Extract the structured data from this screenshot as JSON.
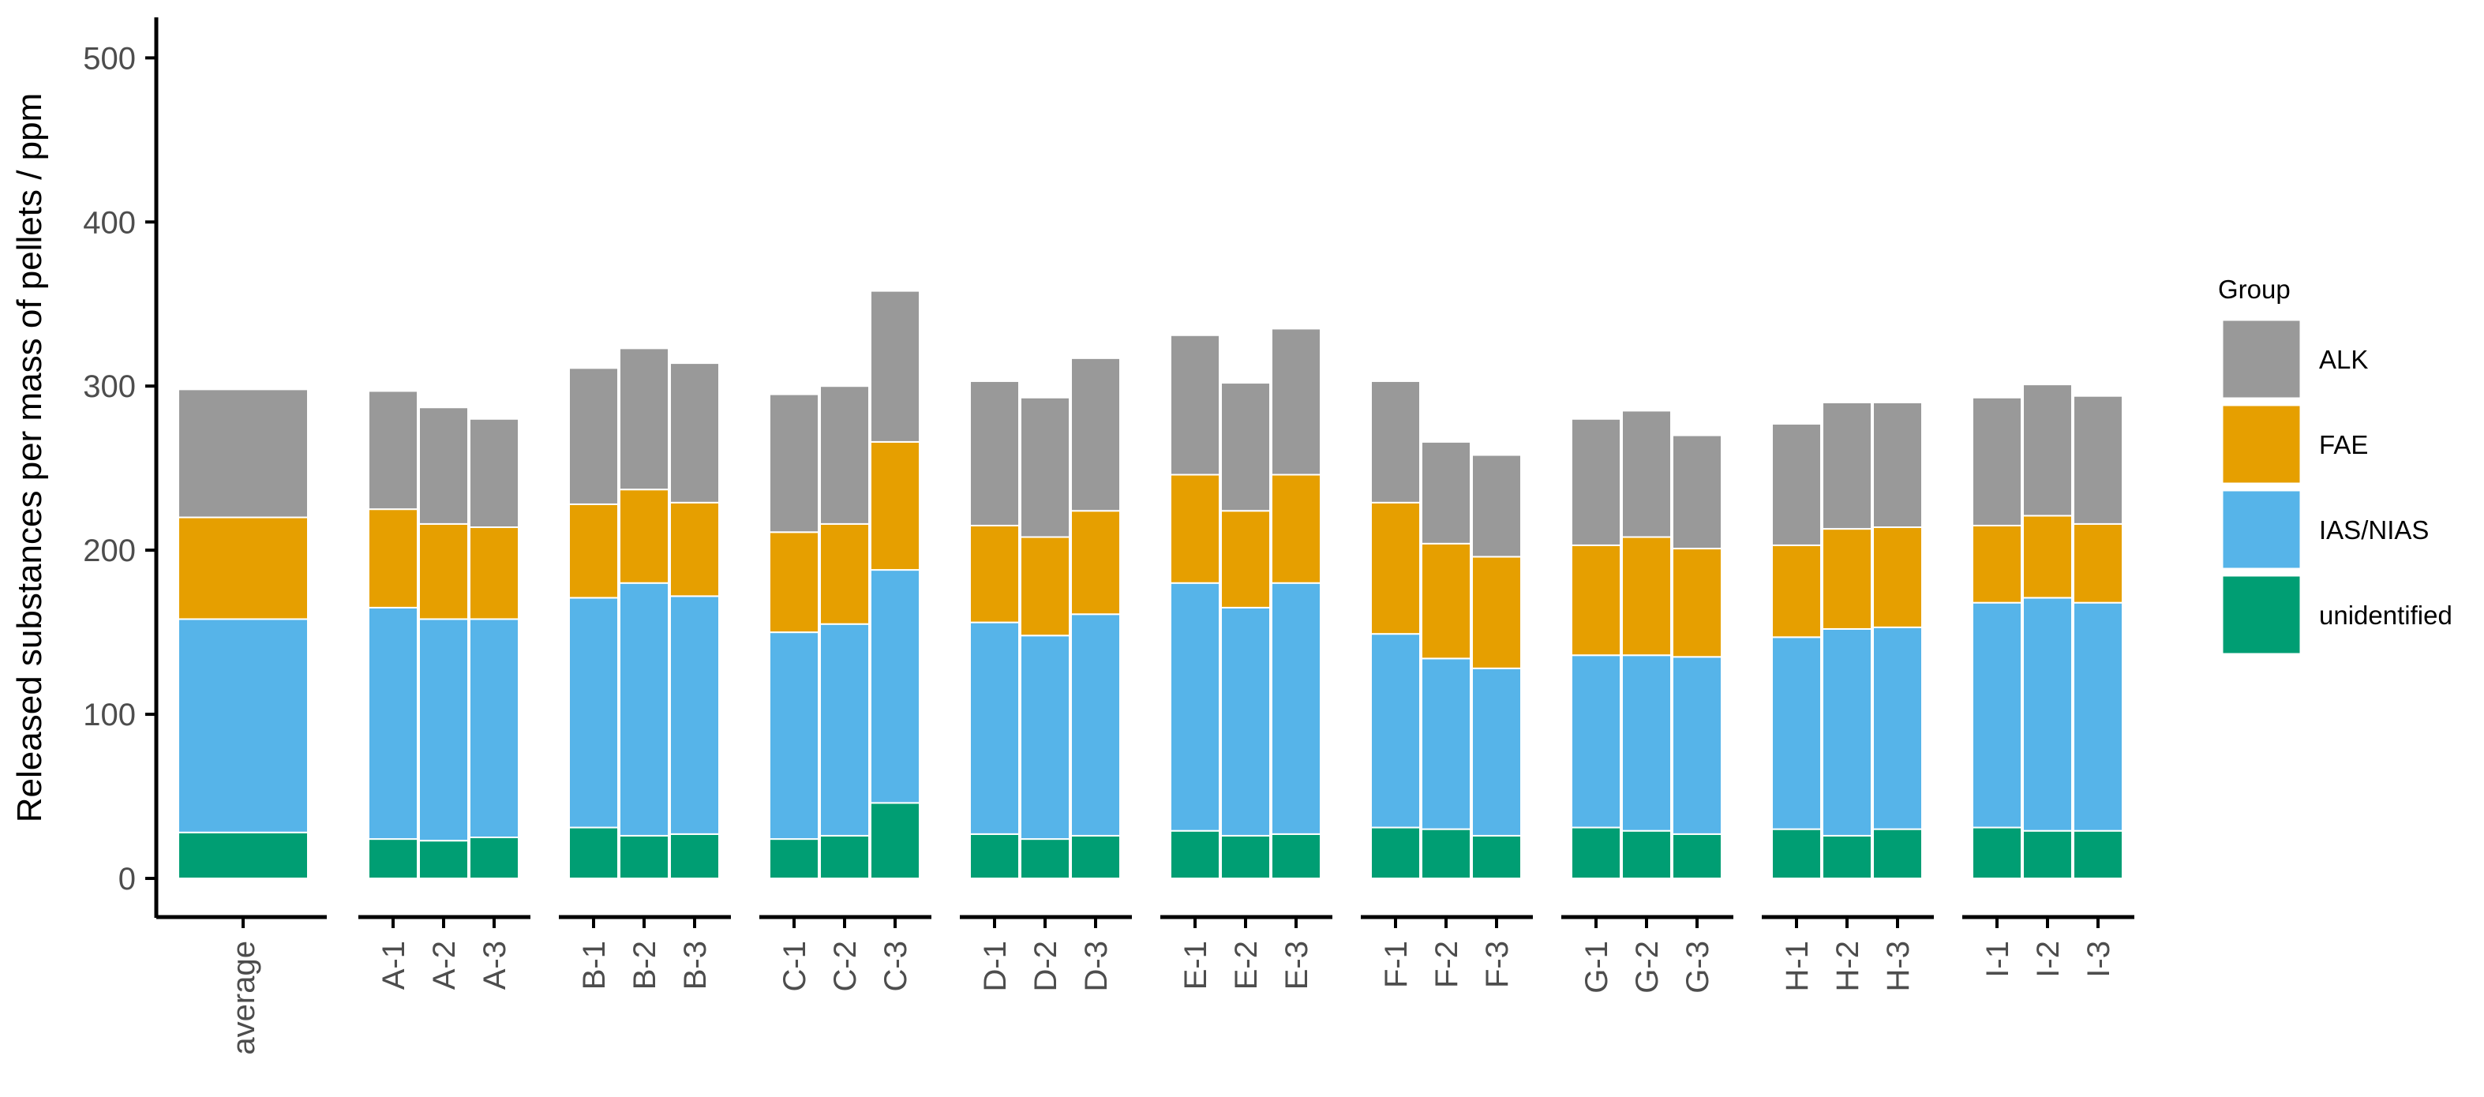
{
  "chart_data": {
    "type": "bar",
    "stacked": true,
    "title": "",
    "xlabel": "",
    "ylabel": "Released substances per mass of pellets / ppm",
    "ylim": [
      0,
      525
    ],
    "yticks": [
      0,
      100,
      200,
      300,
      400,
      500
    ],
    "grid": false,
    "legend_position": "right",
    "legend_title": "Group",
    "legend_order": [
      "ALK",
      "FAE",
      "IAS/NIAS",
      "unidentified"
    ],
    "colors": {
      "ALK": "#999999",
      "FAE": "#E69F00",
      "IAS/NIAS": "#56B4E9",
      "unidentified": "#009E73"
    },
    "facets": [
      {
        "categories": [
          "average"
        ]
      },
      {
        "categories": [
          "A-1",
          "A-2",
          "A-3"
        ]
      },
      {
        "categories": [
          "B-1",
          "B-2",
          "B-3"
        ]
      },
      {
        "categories": [
          "C-1",
          "C-2",
          "C-3"
        ]
      },
      {
        "categories": [
          "D-1",
          "D-2",
          "D-3"
        ]
      },
      {
        "categories": [
          "E-1",
          "E-2",
          "E-3"
        ]
      },
      {
        "categories": [
          "F-1",
          "F-2",
          "F-3"
        ]
      },
      {
        "categories": [
          "G-1",
          "G-2",
          "G-3"
        ]
      },
      {
        "categories": [
          "H-1",
          "H-2",
          "H-3"
        ]
      },
      {
        "categories": [
          "I-1",
          "I-2",
          "I-3"
        ]
      }
    ],
    "categories": [
      "average",
      "A-1",
      "A-2",
      "A-3",
      "B-1",
      "B-2",
      "B-3",
      "C-1",
      "C-2",
      "C-3",
      "D-1",
      "D-2",
      "D-3",
      "E-1",
      "E-2",
      "E-3",
      "F-1",
      "F-2",
      "F-3",
      "G-1",
      "G-2",
      "G-3",
      "H-1",
      "H-2",
      "H-3",
      "I-1",
      "I-2",
      "I-3"
    ],
    "series": [
      {
        "name": "unidentified",
        "values": [
          28,
          24,
          23,
          25,
          31,
          26,
          27,
          24,
          26,
          46,
          27,
          24,
          26,
          29,
          26,
          27,
          31,
          30,
          26,
          31,
          29,
          27,
          30,
          26,
          30,
          31,
          29,
          29
        ]
      },
      {
        "name": "IAS/NIAS",
        "values": [
          130,
          141,
          135,
          133,
          140,
          154,
          145,
          126,
          129,
          142,
          129,
          124,
          135,
          151,
          139,
          153,
          118,
          104,
          102,
          105,
          107,
          108,
          117,
          126,
          123,
          137,
          142,
          139
        ]
      },
      {
        "name": "FAE",
        "values": [
          62,
          60,
          58,
          56,
          57,
          57,
          57,
          61,
          61,
          78,
          59,
          60,
          63,
          66,
          59,
          66,
          80,
          70,
          68,
          67,
          72,
          66,
          56,
          61,
          61,
          47,
          50,
          48
        ]
      },
      {
        "name": "ALK",
        "values": [
          78,
          72,
          71,
          66,
          83,
          86,
          85,
          84,
          84,
          92,
          88,
          85,
          93,
          85,
          78,
          89,
          74,
          62,
          62,
          77,
          77,
          69,
          74,
          77,
          76,
          78,
          80,
          78
        ]
      }
    ]
  }
}
